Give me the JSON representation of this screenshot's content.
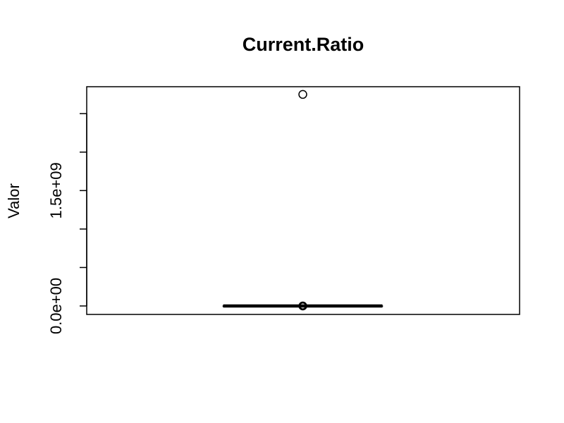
{
  "chart_data": {
    "type": "boxplot",
    "title": "Current.Ratio",
    "xlabel": "",
    "ylabel": "Valor",
    "ylim": [
      -110000000,
      2850000000
    ],
    "yticks": [
      0,
      500000000,
      1000000000,
      1500000000,
      2000000000,
      2500000000
    ],
    "ytick_labels": [
      "0.0e+00",
      "",
      "",
      "1.5e+09",
      "",
      ""
    ],
    "grid": false,
    "legend": "none",
    "box": {
      "min": 0,
      "q1": 0,
      "median": 0,
      "q3": 0,
      "max": 0
    },
    "outliers": [
      0,
      2750000000
    ]
  }
}
